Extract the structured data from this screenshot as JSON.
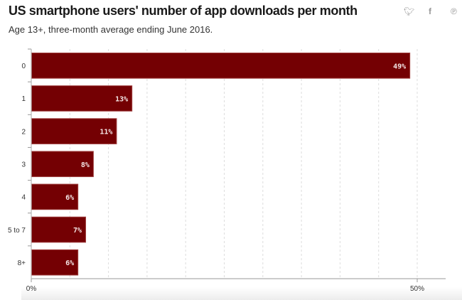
{
  "header": {
    "title": "US smartphone users' number of app downloads per month",
    "subtitle": "Age 13+, three-month average ending June 2016.",
    "share_icons": [
      "twitter-icon",
      "facebook-icon",
      "pinterest-icon"
    ]
  },
  "chart_data": {
    "type": "bar",
    "orientation": "horizontal",
    "title": "US smartphone users' number of app downloads per month",
    "subtitle": "Age 13+, three-month average ending June 2016.",
    "categories": [
      "0",
      "1",
      "2",
      "3",
      "4",
      "5 to 7",
      "8+"
    ],
    "values": [
      49,
      13,
      11,
      8,
      6,
      7,
      6
    ],
    "data_labels": [
      "49%",
      "13%",
      "11%",
      "8%",
      "6%",
      "7%",
      "6%"
    ],
    "xlim": [
      0,
      53.7
    ],
    "x_ticks": [
      0,
      50
    ],
    "x_tick_labels": [
      "0%",
      "50%"
    ],
    "gridline_step": 5,
    "grid": true,
    "bar_color": "#740003",
    "xlabel": "",
    "ylabel": ""
  }
}
